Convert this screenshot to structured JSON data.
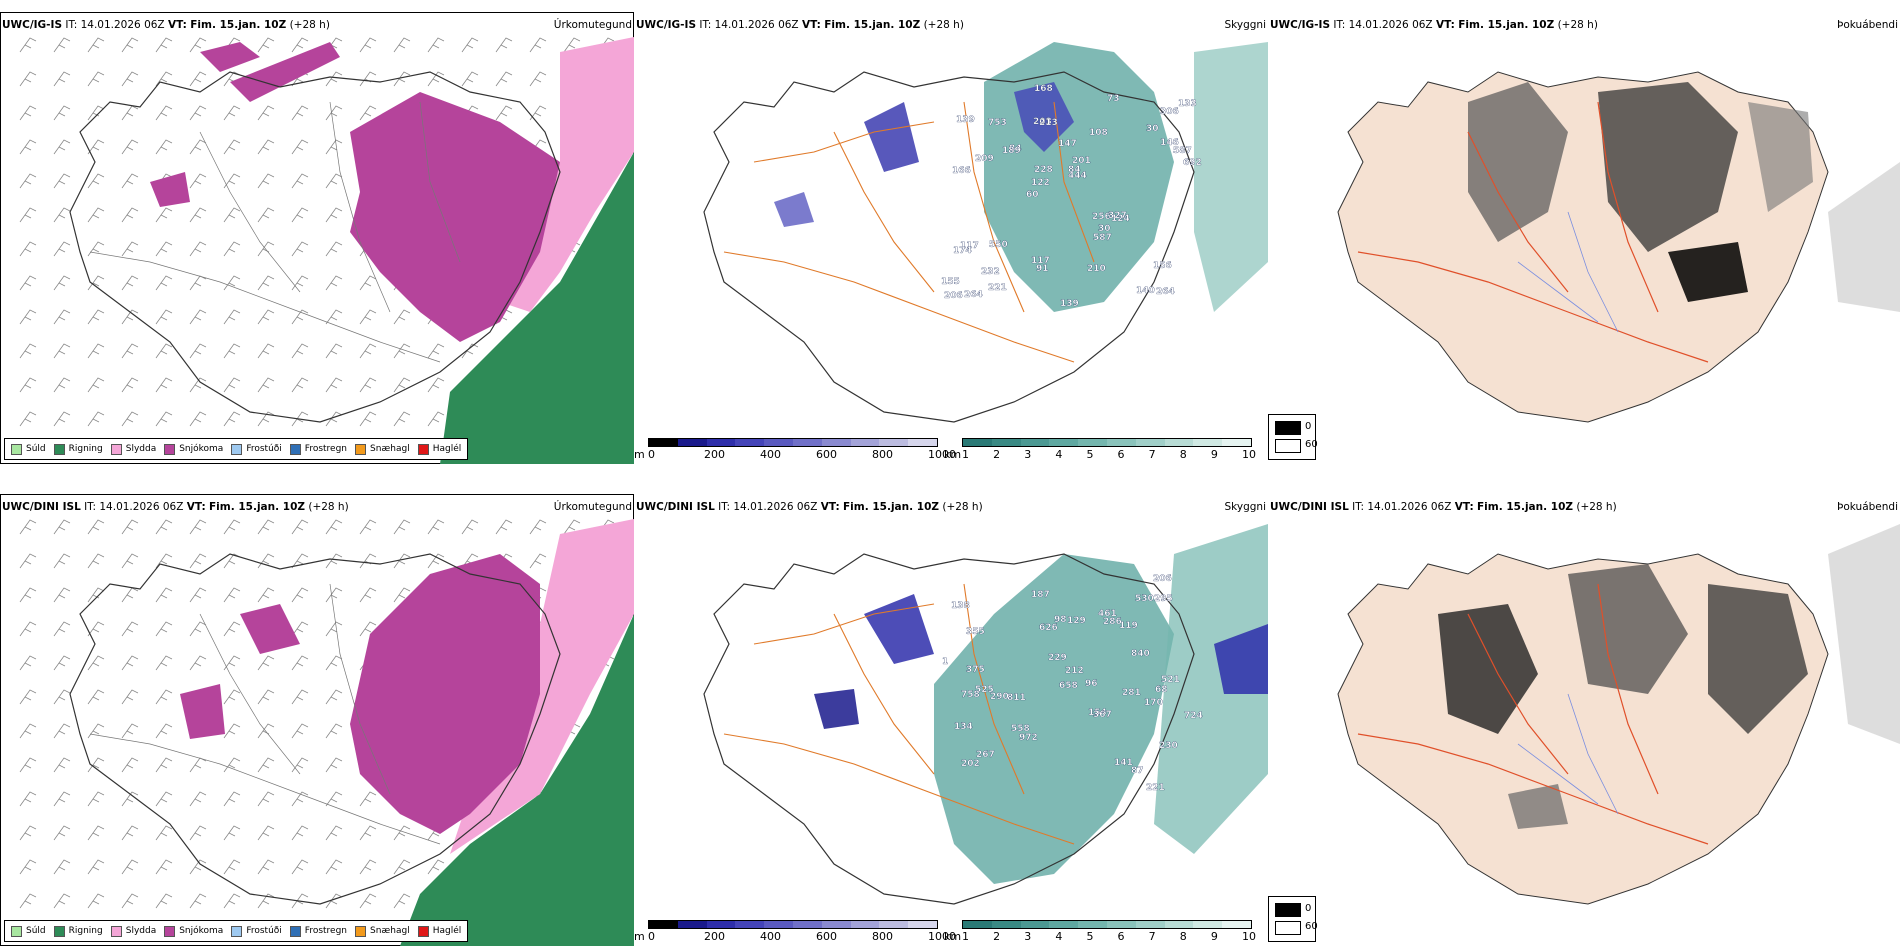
{
  "rows": [
    {
      "source": "UWC/IG-IS",
      "it_label": "IT:",
      "it_time": "14.01.2026 06Z",
      "vt_label": "VT:",
      "vt_time": "Fim. 15.jan. 10Z",
      "lead": "(+28 h)",
      "titles": {
        "precip": "Úrkomutegund",
        "visibility": "Skyggni",
        "fog": "Þokuábendi"
      },
      "vis_labels": [
        "264",
        "166",
        "306",
        "60",
        "108",
        "264",
        "203",
        "147",
        "117",
        "84",
        "155",
        "232",
        "213",
        "201",
        "124",
        "139",
        "168",
        "692",
        "256",
        "146",
        "122",
        "117",
        "228",
        "753",
        "73",
        "550",
        "140",
        "156",
        "327",
        "139",
        "189",
        "209",
        "587",
        "221",
        "587",
        "84",
        "206",
        "91",
        "444",
        "174",
        "30",
        "133",
        "30",
        "210"
      ]
    },
    {
      "source": "UWC/DINI ISL",
      "it_label": "IT:",
      "it_time": "14.01.2026 06Z",
      "vt_label": "VT:",
      "vt_time": "Fim. 15.jan. 10Z",
      "lead": "(+28 h)",
      "titles": {
        "precip": "Úrkomutegund",
        "visibility": "Skyggni",
        "fog": "Þokuábendi"
      },
      "vis_labels": [
        "221",
        "525",
        "154",
        "138",
        "230",
        "355",
        "267",
        "811",
        "119",
        "98",
        "286",
        "87",
        "972",
        "187",
        "96",
        "134",
        "281",
        "212",
        "1",
        "202",
        "206",
        "129",
        "840",
        "724",
        "521",
        "375",
        "290",
        "658",
        "229",
        "295",
        "367",
        "758",
        "558",
        "461",
        "626",
        "170",
        "68",
        "141",
        "530"
      ]
    }
  ],
  "precip_legend": [
    {
      "label": "Súld",
      "color": "#a8e6a0"
    },
    {
      "label": "Rigning",
      "color": "#2e8b57"
    },
    {
      "label": "Slydda",
      "color": "#f4a6d7"
    },
    {
      "label": "Snjókoma",
      "color": "#b5449b"
    },
    {
      "label": "Frostúði",
      "color": "#9ec9f0"
    },
    {
      "label": "Frostregn",
      "color": "#2f6fb5"
    },
    {
      "label": "Snæhagl",
      "color": "#f29a1c"
    },
    {
      "label": "Haglél",
      "color": "#e01818"
    }
  ],
  "vis_m_bar": {
    "unit": "m",
    "ticks": [
      "0",
      "200",
      "400",
      "600",
      "800",
      "1000"
    ],
    "colors": [
      "#000000",
      "#1a1a8c",
      "#2e2eaa",
      "#4444b8",
      "#5a5ac0",
      "#7070c8",
      "#8a8ad0",
      "#a3a3d8",
      "#bcbce0",
      "#d6d6ec"
    ]
  },
  "vis_km_bar": {
    "unit": "km",
    "ticks": [
      "1",
      "2",
      "3",
      "4",
      "5",
      "6",
      "7",
      "8",
      "9",
      "10"
    ],
    "colors": [
      "#2a7a76",
      "#3a8a84",
      "#4c9993",
      "#5fa8a1",
      "#74b6ae",
      "#8ac3bb",
      "#a0cfc8",
      "#b8dcd5",
      "#d0e9e3",
      "#e6f4f1"
    ]
  },
  "fog_legend": {
    "values": [
      "0",
      "60"
    ],
    "colors": [
      "#000000",
      "#ffffff"
    ]
  }
}
